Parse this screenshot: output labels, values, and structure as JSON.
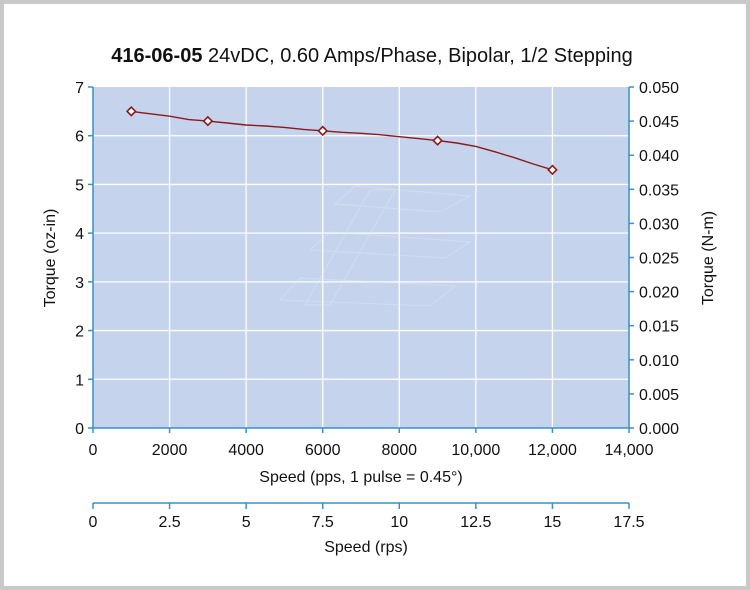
{
  "chart_data": {
    "type": "line",
    "title_bold": "416-06-05",
    "title_rest": " 24vDC, 0.60 Amps/Phase, Bipolar, 1/2 Stepping",
    "xlabel": "Speed (pps, 1 pulse = 0.45°)",
    "ylabel_left": "Torque (oz-in)",
    "ylabel_right": "Torque (N-m)",
    "xlabel_secondary": "Speed (rps)",
    "xlim": [
      0,
      14000
    ],
    "ylim": [
      0,
      7
    ],
    "ylim_right": [
      0,
      0.05
    ],
    "x_ticks": [
      "0",
      "2000",
      "4000",
      "6000",
      "8000",
      "10,000",
      "12,000",
      "14,000"
    ],
    "y_ticks": [
      "0",
      "1",
      "2",
      "3",
      "4",
      "5",
      "6",
      "7"
    ],
    "y_right_ticks": [
      "0.000",
      "0.005",
      "0.010",
      "0.015",
      "0.020",
      "0.025",
      "0.030",
      "0.035",
      "0.040",
      "0.045",
      "0.050"
    ],
    "rps_ticks": [
      "0",
      "2.5",
      "5",
      "7.5",
      "10",
      "12.5",
      "15",
      "17.5"
    ],
    "grid": true,
    "colors": {
      "plot_bg": "#c5d3ec",
      "line": "#8b1a1a",
      "axis": "#3a8fc8"
    },
    "series": [
      {
        "marker_points": {
          "x": [
            1000,
            3000,
            6000,
            9000,
            12000
          ],
          "y": [
            6.5,
            6.3,
            6.1,
            5.9,
            5.3
          ]
        },
        "curve": {
          "x": [
            1000,
            1500,
            2000,
            2500,
            3000,
            3500,
            4000,
            4500,
            5000,
            5500,
            6000,
            6500,
            7000,
            7500,
            8000,
            8500,
            9000,
            9500,
            10000,
            10500,
            11000,
            11500,
            12000
          ],
          "y": [
            6.5,
            6.45,
            6.4,
            6.33,
            6.3,
            6.26,
            6.22,
            6.2,
            6.17,
            6.13,
            6.1,
            6.07,
            6.05,
            6.02,
            5.98,
            5.94,
            5.9,
            5.85,
            5.78,
            5.67,
            5.55,
            5.42,
            5.3
          ]
        }
      }
    ]
  }
}
